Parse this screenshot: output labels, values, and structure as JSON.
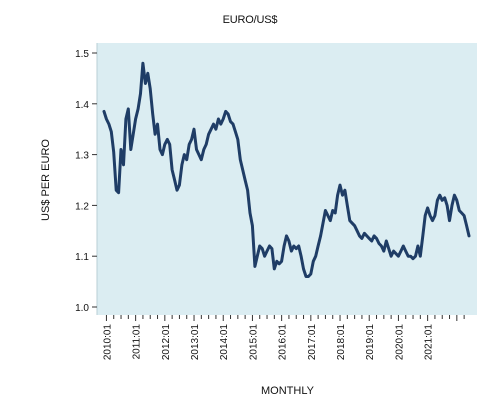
{
  "chart_data": {
    "type": "line",
    "title": "EURO/US$",
    "xlabel": "MONTHLY",
    "ylabel": "US$ PER EURO",
    "ylim": [
      1.0,
      1.5
    ],
    "yticks": [
      "1.5",
      "1.4",
      "1.3",
      "1.2",
      "1.1",
      "1.0"
    ],
    "xticks": [
      "2010:01",
      "2011:01",
      "2012:01",
      "2013:01",
      "2014:01",
      "2015:01",
      "2016:01",
      "2017:01",
      "2018:01",
      "2019:01",
      "2020:01",
      "2021:01"
    ],
    "x_start": "2009:12",
    "x_end": "2021:07",
    "grid": false,
    "background": "#dbedf2",
    "line_color": "#1f3d66",
    "series": [
      {
        "values": [
          1.385,
          1.37,
          1.36,
          1.345,
          1.305,
          1.23,
          1.225,
          1.31,
          1.28,
          1.37,
          1.39,
          1.31,
          1.34,
          1.37,
          1.39,
          1.42,
          1.48,
          1.44,
          1.46,
          1.43,
          1.38,
          1.34,
          1.36,
          1.31,
          1.3,
          1.32,
          1.33,
          1.32,
          1.27,
          1.25,
          1.23,
          1.24,
          1.28,
          1.3,
          1.29,
          1.32,
          1.33,
          1.35,
          1.31,
          1.3,
          1.29,
          1.31,
          1.32,
          1.34,
          1.35,
          1.36,
          1.35,
          1.37,
          1.36,
          1.37,
          1.385,
          1.38,
          1.365,
          1.36,
          1.345,
          1.33,
          1.29,
          1.27,
          1.25,
          1.23,
          1.185,
          1.16,
          1.08,
          1.1,
          1.12,
          1.115,
          1.1,
          1.11,
          1.12,
          1.115,
          1.075,
          1.09,
          1.085,
          1.09,
          1.12,
          1.14,
          1.13,
          1.11,
          1.12,
          1.115,
          1.12,
          1.1,
          1.075,
          1.06,
          1.06,
          1.065,
          1.09,
          1.1,
          1.12,
          1.14,
          1.165,
          1.19,
          1.18,
          1.17,
          1.19,
          1.185,
          1.22,
          1.24,
          1.22,
          1.23,
          1.2,
          1.17,
          1.165,
          1.16,
          1.15,
          1.14,
          1.135,
          1.145,
          1.14,
          1.135,
          1.13,
          1.14,
          1.135,
          1.125,
          1.12,
          1.11,
          1.13,
          1.115,
          1.1,
          1.11,
          1.105,
          1.1,
          1.11,
          1.12,
          1.11,
          1.1,
          1.1,
          1.095,
          1.1,
          1.12,
          1.1,
          1.14,
          1.18,
          1.195,
          1.18,
          1.17,
          1.18,
          1.21,
          1.22,
          1.21,
          1.215,
          1.2,
          1.17,
          1.2,
          1.22,
          1.21,
          1.19,
          1.185,
          1.18,
          1.16,
          1.14
        ]
      }
    ]
  }
}
